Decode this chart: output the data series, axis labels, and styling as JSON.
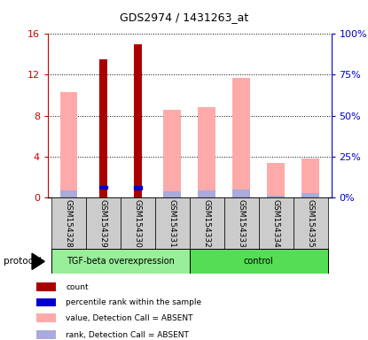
{
  "title": "GDS2974 / 1431263_at",
  "samples": [
    "GSM154328",
    "GSM154329",
    "GSM154330",
    "GSM154331",
    "GSM154332",
    "GSM154333",
    "GSM154334",
    "GSM154335"
  ],
  "value_absent": [
    10.3,
    null,
    null,
    8.6,
    8.8,
    11.7,
    3.4,
    3.8
  ],
  "rank_absent": [
    4.3,
    null,
    null,
    3.8,
    4.3,
    4.5,
    1.0,
    2.8
  ],
  "count_present": [
    null,
    13.5,
    15.0,
    null,
    null,
    null,
    null,
    null
  ],
  "percentile_present": [
    null,
    6.1,
    5.9,
    null,
    null,
    null,
    null,
    null
  ],
  "ylim_left": [
    0,
    16
  ],
  "ylim_right": [
    0,
    100
  ],
  "yticks_left": [
    0,
    4,
    8,
    12,
    16
  ],
  "yticks_right": [
    0,
    25,
    50,
    75,
    100
  ],
  "ytick_labels_left": [
    "0",
    "4",
    "8",
    "12",
    "16"
  ],
  "ytick_labels_right": [
    "0%",
    "25%",
    "50%",
    "75%",
    "100%"
  ],
  "color_count": "#aa0000",
  "color_percentile": "#0000cc",
  "color_value_absent": "#ffaaaa",
  "color_rank_absent": "#aaaadd",
  "bar_width": 0.5,
  "group_colors": [
    "#99ee99",
    "#55dd55"
  ],
  "group_labels": [
    "TGF-beta overexpression",
    "control"
  ],
  "legend_items": [
    {
      "label": "count",
      "color": "#aa0000"
    },
    {
      "label": "percentile rank within the sample",
      "color": "#0000cc"
    },
    {
      "label": "value, Detection Call = ABSENT",
      "color": "#ffaaaa"
    },
    {
      "label": "rank, Detection Call = ABSENT",
      "color": "#aaaadd"
    }
  ],
  "protocol_label": "protocol",
  "tick_label_color_left": "#cc0000",
  "tick_label_color_right": "#0000cc"
}
